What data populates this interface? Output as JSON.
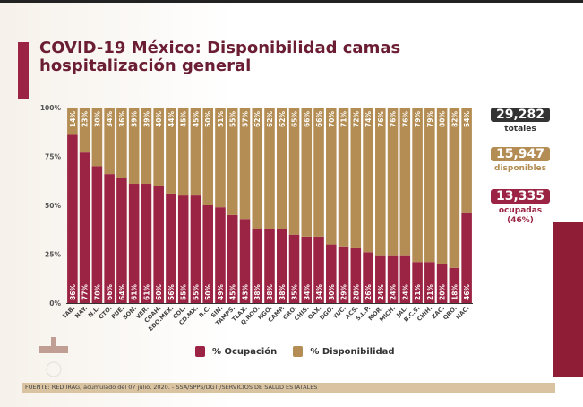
{
  "header": {
    "title": "COVID-19 México: Disponibilidad camas hospitalización general"
  },
  "stats": {
    "total_value": "29,282",
    "total_label": "totales",
    "available_value": "15,947",
    "available_label": "disponibles",
    "occupied_value": "13,335",
    "occupied_label": "ocupadas",
    "occupied_pct": "(46%)"
  },
  "footer": {
    "source": "FUENTE: RED IRAG, acumulado del 07 julio, 2020. -  SSA/SPPS/DGTI/SERVICIOS DE SALUD ESTATALES"
  },
  "colors": {
    "occupation": "#9b2343",
    "availability": "#b38d53",
    "total": "#333333"
  },
  "chart_data": {
    "type": "bar",
    "stacked": true,
    "categories": [
      "TAB.",
      "NAY.",
      "N.L.",
      "GTO.",
      "PUE.",
      "SON.",
      "VER.",
      "COAH.",
      "EDO.MEX.",
      "COL.",
      "CD.MX.",
      "B.C.",
      "SIN.",
      "TAMPS.",
      "TLAX.",
      "Q.ROO.",
      "HGO.",
      "CAMP.",
      "GRO.",
      "CHIS.",
      "OAX.",
      "DGO.",
      "YUC.",
      "ACS.",
      "S.L.P.",
      "MOR.",
      "MICH.",
      "JAL.",
      "B.C.S.",
      "CHIH.",
      "ZAC.",
      "QRO.",
      "NAC."
    ],
    "series": [
      {
        "name": "% Ocupación",
        "values": [
          86,
          77,
          70,
          66,
          64,
          61,
          61,
          60,
          56,
          55,
          55,
          50,
          49,
          45,
          43,
          38,
          38,
          38,
          35,
          34,
          34,
          30,
          29,
          28,
          26,
          24,
          24,
          24,
          21,
          21,
          20,
          18,
          46
        ]
      },
      {
        "name": "% Disponibilidad",
        "values": [
          14,
          23,
          30,
          34,
          36,
          39,
          39,
          40,
          44,
          45,
          45,
          50,
          51,
          55,
          57,
          62,
          62,
          62,
          65,
          66,
          66,
          70,
          71,
          72,
          74,
          76,
          76,
          76,
          79,
          79,
          80,
          82,
          54
        ]
      }
    ],
    "yticks": [
      "0%",
      "25%",
      "50%",
      "75%",
      "100%"
    ],
    "ylim": [
      0,
      100
    ],
    "legend": "bottom"
  }
}
